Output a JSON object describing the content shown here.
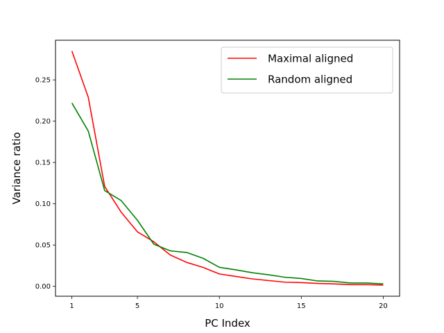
{
  "chart_data": {
    "type": "line",
    "title": "",
    "xlabel": "PC Index",
    "ylabel": "Variance ratio",
    "xlim": [
      0.0,
      21.0
    ],
    "ylim": [
      -0.012,
      0.298
    ],
    "xticks": [
      1,
      5,
      10,
      15,
      20
    ],
    "xtick_labels": [
      "1",
      "5",
      "10",
      "15",
      "20"
    ],
    "yticks": [
      0.0,
      0.05,
      0.1,
      0.15,
      0.2,
      0.25
    ],
    "ytick_labels": [
      "0.00",
      "0.05",
      "0.10",
      "0.15",
      "0.20",
      "0.25"
    ],
    "grid": false,
    "legend_position": "top-right",
    "x": [
      1,
      2,
      3,
      4,
      5,
      6,
      7,
      8,
      9,
      10,
      11,
      12,
      13,
      14,
      15,
      16,
      17,
      18,
      19,
      20
    ],
    "series": [
      {
        "name": "Maximal aligned",
        "color": "#ff0000",
        "values": [
          0.285,
          0.229,
          0.121,
          0.09,
          0.066,
          0.054,
          0.038,
          0.029,
          0.023,
          0.015,
          0.012,
          0.009,
          0.007,
          0.005,
          0.0045,
          0.0035,
          0.003,
          0.002,
          0.002,
          0.0015
        ]
      },
      {
        "name": "Random aligned",
        "color": "#008000",
        "values": [
          0.222,
          0.188,
          0.116,
          0.104,
          0.08,
          0.051,
          0.043,
          0.041,
          0.034,
          0.023,
          0.02,
          0.0165,
          0.014,
          0.011,
          0.0095,
          0.0065,
          0.006,
          0.004,
          0.004,
          0.003
        ]
      }
    ]
  }
}
